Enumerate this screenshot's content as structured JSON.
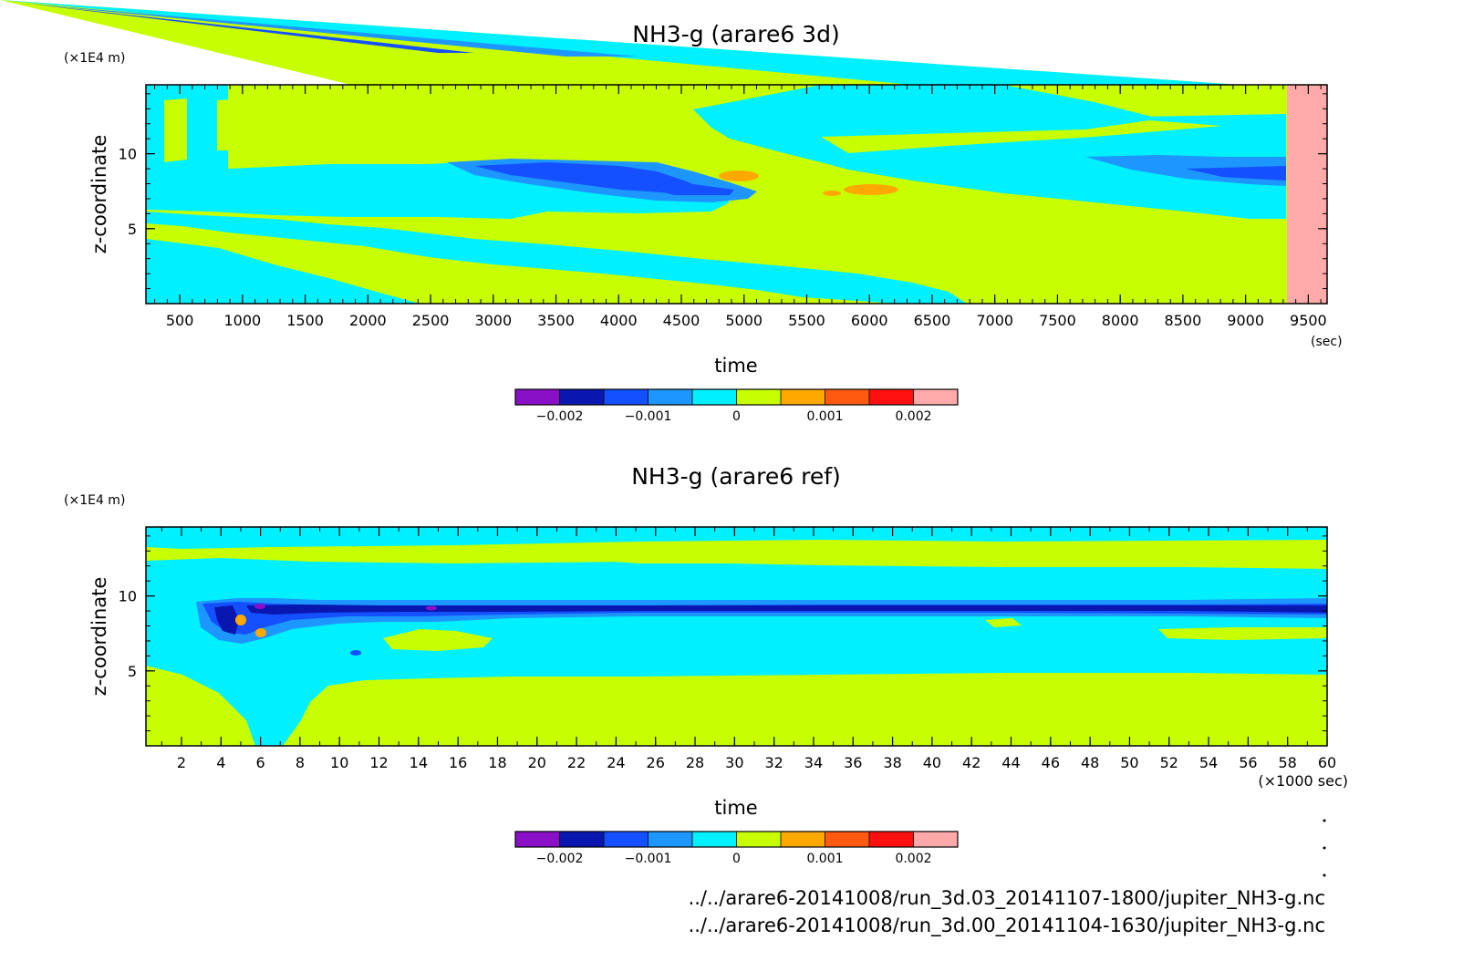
{
  "chart_data": [
    {
      "type": "heatmap",
      "title": "NH3-g (arare6 3d)",
      "xlabel": "time",
      "ylabel": "z-coordinate",
      "x_unit": "(sec)",
      "y_unit": "(×1E4 m)",
      "xlim": [
        230,
        9650
      ],
      "ylim": [
        0,
        14.6
      ],
      "x_ticks": [
        "500",
        "1000",
        "1500",
        "2000",
        "2500",
        "3000",
        "3500",
        "4000",
        "4500",
        "5000",
        "5500",
        "6000",
        "6500",
        "7000",
        "7500",
        "8000",
        "8500",
        "9000",
        "9500"
      ],
      "x_tick_values": [
        500,
        1000,
        1500,
        2000,
        2500,
        3000,
        3500,
        4000,
        4500,
        5000,
        5500,
        6000,
        6500,
        7000,
        7500,
        8000,
        8500,
        9000,
        9500
      ],
      "y_ticks": [
        "5",
        "10"
      ],
      "y_tick_values": [
        5,
        10
      ],
      "data_end_x": 9330
    },
    {
      "type": "heatmap",
      "title": "NH3-g (arare6 ref)",
      "xlabel": "time",
      "ylabel": "z-coordinate",
      "x_unit": "(×1000 sec)",
      "y_unit": "(×1E4 m)",
      "xlim": [
        0.2,
        60
      ],
      "ylim": [
        0,
        14.6
      ],
      "x_ticks": [
        "2",
        "4",
        "6",
        "8",
        "10",
        "12",
        "14",
        "16",
        "18",
        "20",
        "22",
        "24",
        "26",
        "28",
        "30",
        "32",
        "34",
        "36",
        "38",
        "40",
        "42",
        "44",
        "46",
        "48",
        "50",
        "52",
        "54",
        "56",
        "58",
        "60"
      ],
      "x_tick_values": [
        2,
        4,
        6,
        8,
        10,
        12,
        14,
        16,
        18,
        20,
        22,
        24,
        26,
        28,
        30,
        32,
        34,
        36,
        38,
        40,
        42,
        44,
        46,
        48,
        50,
        52,
        54,
        56,
        58,
        60
      ],
      "y_ticks": [
        "5",
        "10"
      ],
      "y_tick_values": [
        5,
        10
      ]
    }
  ],
  "colorbar": {
    "levels": [
      -0.0025,
      -0.002,
      -0.0015,
      -0.001,
      -0.0005,
      0,
      0.0005,
      0.001,
      0.0015,
      0.002,
      0.0025
    ],
    "colors": [
      "#8a10c8",
      "#0a16b0",
      "#1450ff",
      "#1e96ff",
      "#00f0ff",
      "#c8ff00",
      "#ffa800",
      "#ff5a10",
      "#ff1010",
      "#ffaaaa"
    ],
    "tick_labels": [
      "−0.002",
      "−0.001",
      "0",
      "0.001",
      "0.002"
    ],
    "tick_values": [
      -0.002,
      -0.001,
      0,
      0.001,
      0.002
    ]
  },
  "footer": {
    "paths": [
      "../../arare6-20141008/run_3d.03_20141107-1800/jupiter_NH3-g.nc",
      "../../arare6-20141008/run_3d.00_20141104-1630/jupiter_NH3-g.nc"
    ]
  }
}
